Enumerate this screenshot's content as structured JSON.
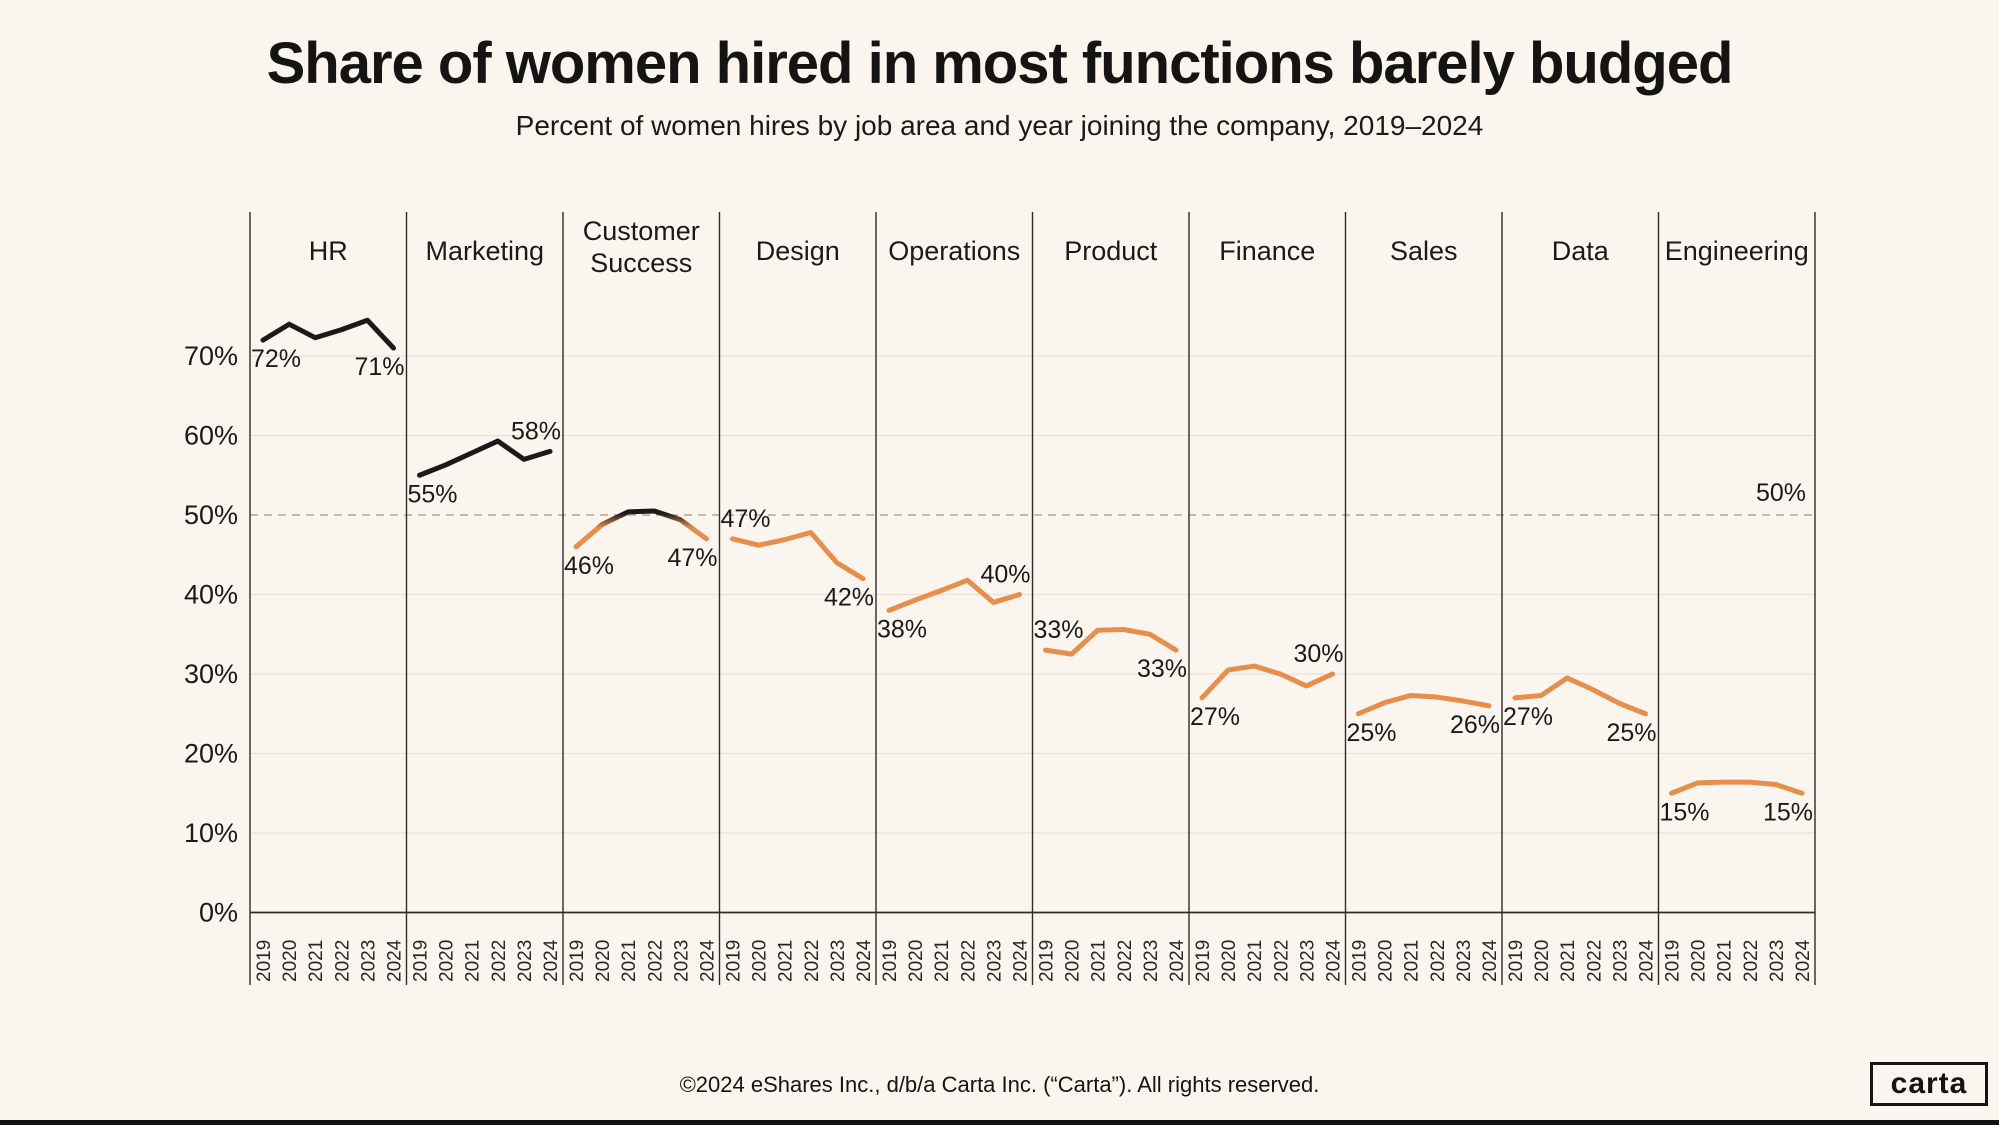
{
  "header": {
    "title": "Share of women hired in most functions barely budged",
    "subtitle": "Percent of women hires by job area and year joining the company, 2019–2024"
  },
  "footer": {
    "copyright": "©2024 eShares Inc., d/b/a Carta Inc. (“Carta”). All rights reserved.",
    "logo_text": "carta"
  },
  "colors": {
    "background": "#FAF6EF",
    "line_above": "#1A1A1A",
    "line_below": "#E88E4A",
    "grid": "#E7E3DB",
    "reference_dash": "#ABA69D",
    "divider": "#2E2B28",
    "axis": "#2E2B28",
    "text": "#1A1A1A",
    "tick_text": "#262626"
  },
  "chart_data": {
    "type": "line",
    "title": "Share of women hired in most functions barely budged",
    "subtitle": "Percent of women hires by job area and year joining the company, 2019-2024",
    "x": [
      "2019",
      "2020",
      "2021",
      "2022",
      "2023",
      "2024"
    ],
    "ylabel": "",
    "xlabel": "",
    "ylim": [
      0,
      78
    ],
    "y_ticks": [
      "0%",
      "10%",
      "20%",
      "30%",
      "40%",
      "50%",
      "60%",
      "70%"
    ],
    "y_tick_values": [
      0,
      10,
      20,
      30,
      40,
      50,
      60,
      70
    ],
    "grid": "horizontal",
    "reference_line": {
      "value": 50,
      "label": "50%"
    },
    "series": [
      {
        "name": "HR",
        "values": [
          72,
          74,
          72.3,
          73.3,
          74.5,
          71
        ],
        "first_label": "72%",
        "last_label": "71%",
        "first_label_pos": "below",
        "last_label_pos": "below",
        "segment": "above"
      },
      {
        "name": "Marketing",
        "values": [
          55,
          56.3,
          57.8,
          59.3,
          57,
          58
        ],
        "first_label": "55%",
        "last_label": "58%",
        "first_label_pos": "below",
        "last_label_pos": "above",
        "segment": "above"
      },
      {
        "name": "Customer Success",
        "values": [
          46,
          48.8,
          50.4,
          50.5,
          49.4,
          47
        ],
        "first_label": "46%",
        "last_label": "47%",
        "first_label_pos": "below",
        "last_label_pos": "below",
        "segment": "crosses"
      },
      {
        "name": "Design",
        "values": [
          47,
          46.2,
          46.9,
          47.8,
          44,
          42
        ],
        "first_label": "47%",
        "last_label": "42%",
        "first_label_pos": "above",
        "last_label_pos": "below",
        "segment": "below"
      },
      {
        "name": "Operations",
        "values": [
          38,
          39.3,
          40.5,
          41.8,
          39,
          40
        ],
        "first_label": "38%",
        "last_label": "40%",
        "first_label_pos": "below",
        "last_label_pos": "above",
        "segment": "below"
      },
      {
        "name": "Product",
        "values": [
          33,
          32.5,
          35.5,
          35.6,
          35,
          33
        ],
        "first_label": "33%",
        "last_label": "33%",
        "first_label_pos": "above",
        "last_label_pos": "below",
        "segment": "below"
      },
      {
        "name": "Finance",
        "values": [
          27,
          30.5,
          31,
          30,
          28.5,
          30
        ],
        "first_label": "27%",
        "last_label": "30%",
        "first_label_pos": "below",
        "last_label_pos": "above",
        "segment": "below"
      },
      {
        "name": "Sales",
        "values": [
          25,
          26.4,
          27.3,
          27.1,
          26.6,
          26
        ],
        "first_label": "25%",
        "last_label": "26%",
        "first_label_pos": "below",
        "last_label_pos": "below",
        "segment": "below"
      },
      {
        "name": "Data",
        "values": [
          27,
          27.3,
          29.5,
          28,
          26.3,
          25
        ],
        "first_label": "27%",
        "last_label": "25%",
        "first_label_pos": "below",
        "last_label_pos": "below",
        "segment": "below"
      },
      {
        "name": "Engineering",
        "values": [
          15,
          16.3,
          16.4,
          16.4,
          16.1,
          15
        ],
        "first_label": "15%",
        "last_label": "15%",
        "first_label_pos": "below",
        "last_label_pos": "below",
        "segment": "below"
      }
    ]
  }
}
